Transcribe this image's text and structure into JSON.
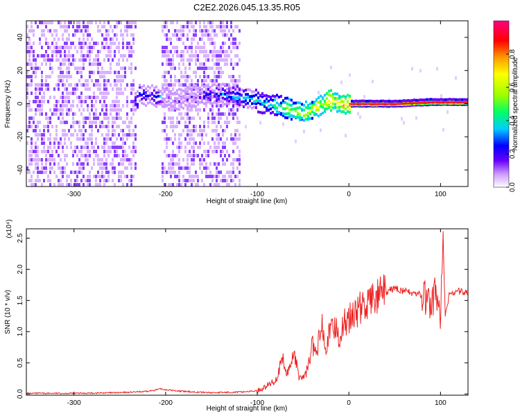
{
  "figure": {
    "title": "C2E2.2026.045.13.35.R05"
  },
  "chart_data": [
    {
      "type": "heatmap",
      "xlabel": "Height of straight line (km)",
      "ylabel": "Frequency (Hz)",
      "xlim": [
        -352,
        130
      ],
      "ylim": [
        -50,
        50
      ],
      "xticks": [
        -300,
        -200,
        -100,
        0,
        100
      ],
      "xticklabels": [
        "-300",
        "-200",
        "-100",
        "0",
        "100"
      ],
      "yticks": [
        -40,
        -20,
        0,
        20,
        40
      ],
      "yticklabels": [
        "-40",
        "-20",
        "0",
        "20",
        "40"
      ],
      "colorbar": {
        "label": "Normalized spectral amplitude",
        "range": [
          0,
          1
        ],
        "ticks": [
          0.0,
          0.2,
          0.4,
          0.6,
          0.8
        ],
        "ticklabels": [
          "0.0",
          "0.2",
          "0.4",
          "0.6",
          "0.8"
        ],
        "colors": [
          "#ffffff",
          "#cc99ff",
          "#6600ff",
          "#0000ff",
          "#00ccff",
          "#00ff66",
          "#99ff00",
          "#ffff00",
          "#ff9900",
          "#ff0000",
          "#ff0080"
        ]
      },
      "ridge": {
        "x": [
          -230,
          -210,
          -190,
          -155,
          -130,
          -110,
          -90,
          -75,
          -60,
          -50,
          -40,
          -30,
          -20,
          -10,
          0,
          50,
          90,
          130
        ],
        "y": [
          6,
          4,
          2,
          6,
          5,
          3,
          0,
          -2,
          -4,
          -6,
          -3,
          0,
          2,
          0,
          0,
          0,
          1,
          1
        ]
      }
    },
    {
      "type": "line",
      "xlabel": "Height of straight line (km)",
      "ylabel": "SNR (10 * v/v)",
      "y_scale_label": "(x10⁴)",
      "xlim": [
        -352,
        130
      ],
      "ylim": [
        -0.02,
        2.65
      ],
      "xticks": [
        -300,
        -200,
        -100,
        0,
        100
      ],
      "xticklabels": [
        "-300",
        "-200",
        "-100",
        "0",
        "100"
      ],
      "yticks": [
        0.0,
        0.5,
        1.0,
        1.5,
        2.0,
        2.5
      ],
      "yticklabels": [
        "0.0",
        "0.5",
        "1.0",
        "1.5",
        "2.0",
        "2.5"
      ],
      "series": [
        {
          "color": "#ee2222",
          "x": [
            -352,
            -300,
            -250,
            -220,
            -205,
            -195,
            -180,
            -150,
            -120,
            -100,
            -90,
            -80,
            -72,
            -68,
            -64,
            -60,
            -55,
            -50,
            -45,
            -40,
            -35,
            -30,
            -25,
            -20,
            -15,
            -10,
            -5,
            0,
            10,
            20,
            30,
            40,
            50,
            60,
            70,
            80,
            85,
            90,
            95,
            100,
            103,
            105,
            110,
            120,
            130
          ],
          "y": [
            0.01,
            0.01,
            0.02,
            0.04,
            0.08,
            0.06,
            0.04,
            0.02,
            0.03,
            0.05,
            0.12,
            0.22,
            0.55,
            0.3,
            0.45,
            0.7,
            0.3,
            0.25,
            0.4,
            0.8,
            0.6,
            1.2,
            0.8,
            1.0,
            1.1,
            0.9,
            1.15,
            1.2,
            1.35,
            1.45,
            1.55,
            1.62,
            1.7,
            1.65,
            1.62,
            1.58,
            1.5,
            1.4,
            1.7,
            1.2,
            2.6,
            1.2,
            1.62,
            1.65,
            1.62
          ]
        }
      ]
    }
  ]
}
